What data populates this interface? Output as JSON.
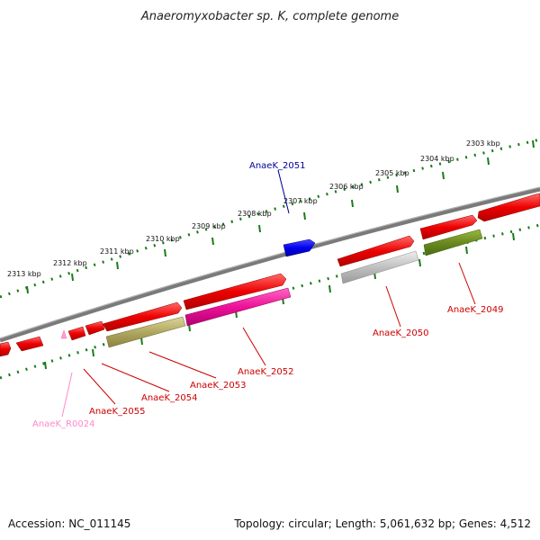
{
  "title": "Anaeromyxobacter sp. K, complete genome",
  "accession": "Accession: NC_011145",
  "topology": "Topology: circular; Length: 5,061,632 bp; Genes: 4,512",
  "ticks": [
    "2313 kbp",
    "2312 kbp",
    "2311 kbp",
    "2310 kbp",
    "2309 kbp",
    "2308 kbp",
    "2307 kbp",
    "2306 kbp",
    "2305 kbp",
    "2304 kbp",
    "2303 kbp"
  ],
  "genes": {
    "g2051": "AnaeK_2051",
    "g2049": "AnaeK_2049",
    "g2050": "AnaeK_2050",
    "g2052": "AnaeK_2052",
    "g2053": "AnaeK_2053",
    "g2054": "AnaeK_2054",
    "g2055": "AnaeK_2055",
    "gR0024": "AnaeK_R0024"
  },
  "colors": {
    "backbone": "#808080",
    "scale": "#1a7a1a",
    "gene_red": "#ee1111",
    "gene_blue": "#1111ee",
    "gene_magenta": "#ee1199",
    "gene_olive": "#b0a860",
    "gene_green": "#6a8a20",
    "gene_grey": "#c0c0c0",
    "gene_pink": "#ff9ed6",
    "label_red": "#cc0000",
    "label_blue": "#000099",
    "label_pink": "#ff88cc"
  }
}
